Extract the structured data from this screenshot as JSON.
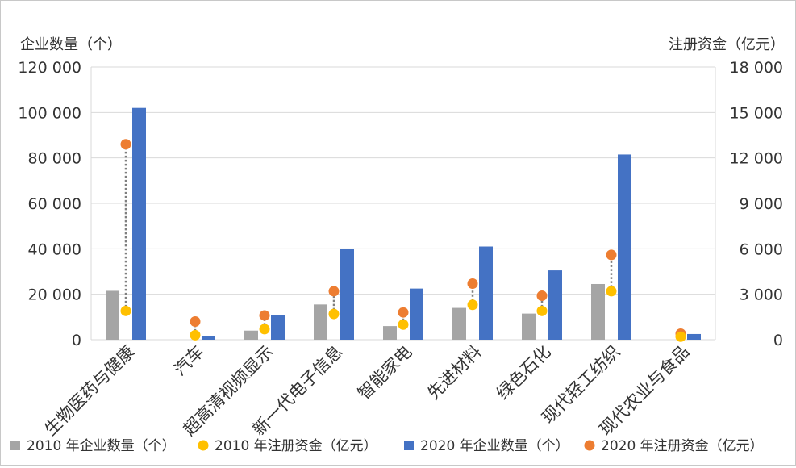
{
  "chart_data": {
    "type": "bar",
    "categories": [
      "生物医药与健康",
      "汽车",
      "超高清视频显示",
      "新一代电子信息",
      "智能家电",
      "先进材料",
      "绿色石化",
      "现代轻工纺织",
      "现代农业与食品"
    ],
    "left_axis": {
      "label": "企业数量（个）",
      "min": 0,
      "max": 120000,
      "ticks": [
        "0",
        "20 000",
        "40 000",
        "60 000",
        "80 000",
        "100 000",
        "120 000"
      ]
    },
    "right_axis": {
      "label": "注册资金（亿元）",
      "min": 0,
      "max": 18000,
      "ticks": [
        "0",
        "3 000",
        "6 000",
        "9 000",
        "12 000",
        "15 000",
        "18 000"
      ]
    },
    "series": [
      {
        "name": "2010 年企业数量（个）",
        "type": "bar",
        "axis": "left",
        "color": "#a5a5a5",
        "values": [
          21500,
          0,
          4000,
          15500,
          6000,
          14000,
          11500,
          24500,
          0
        ]
      },
      {
        "name": "2010 年注册资金（亿元）",
        "type": "dot",
        "axis": "right",
        "color": "#ffc000",
        "values": [
          1900,
          300,
          700,
          1700,
          1000,
          2300,
          1900,
          3200,
          200
        ]
      },
      {
        "name": "2020 年企业数量（个）",
        "type": "bar",
        "axis": "left",
        "color": "#4472c4",
        "values": [
          102000,
          1500,
          11000,
          40000,
          22500,
          41000,
          30500,
          81500,
          2500
        ]
      },
      {
        "name": "2020 年注册资金（亿元）",
        "type": "dot",
        "axis": "right",
        "color": "#ed7d31",
        "values": [
          12900,
          1200,
          1600,
          3200,
          1800,
          3700,
          2900,
          5600,
          400
        ]
      }
    ],
    "legend_position": "bottom",
    "connector_color": "#7f7f7f"
  }
}
